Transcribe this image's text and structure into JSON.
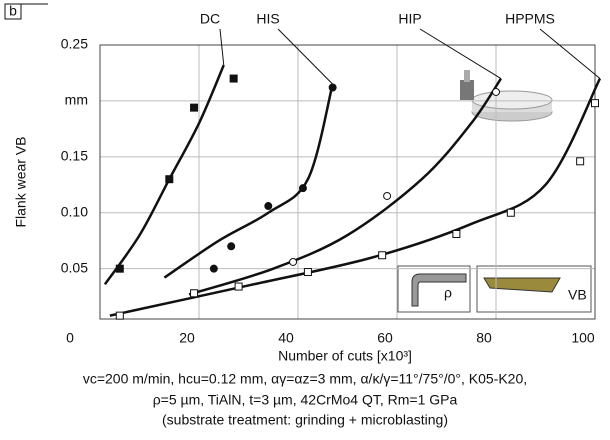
{
  "panel_label": "b",
  "chart_data": {
    "type": "scatter",
    "y_label": "Flank wear VB",
    "x_label": "Number of cuts [x10³]",
    "xlim": [
      0,
      100
    ],
    "xticks": [
      0,
      20,
      40,
      60,
      80,
      100
    ],
    "ylim": [
      0.005,
      0.25
    ],
    "yticks": [
      0.05,
      {
        "value": 0.1,
        "label": "0.10"
      },
      0.15,
      {
        "value": 0.2,
        "label": "mm"
      },
      0.25
    ],
    "grid": true,
    "series": [
      {
        "name": "DC",
        "color": "#111111",
        "marker": "square",
        "filled": true,
        "x": [
          4,
          14,
          19,
          27
        ],
        "values": [
          0.05,
          0.13,
          0.194,
          0.22
        ],
        "fit_x": [
          1,
          8,
          14,
          20,
          25
        ],
        "fit_values": [
          0.036,
          0.08,
          0.13,
          0.18,
          0.232
        ]
      },
      {
        "name": "HIS",
        "color": "#111111",
        "marker": "circle",
        "filled": true,
        "x": [
          23,
          26.5,
          34,
          41,
          47
        ],
        "values": [
          0.05,
          0.07,
          0.106,
          0.122,
          0.212
        ],
        "fit_x": [
          13,
          24,
          34,
          42,
          47
        ],
        "fit_values": [
          0.042,
          0.075,
          0.1,
          0.13,
          0.215
        ]
      },
      {
        "name": "HIP",
        "color": "#111111",
        "marker": "circle",
        "filled": false,
        "x": [
          39,
          58,
          80
        ],
        "values": [
          0.056,
          0.115,
          0.208
        ],
        "fit_x": [
          18,
          35,
          50,
          65,
          75,
          81
        ],
        "fit_values": [
          0.027,
          0.05,
          0.08,
          0.13,
          0.18,
          0.22
        ]
      },
      {
        "name": "HPPMS",
        "color": "#111111",
        "marker": "square",
        "filled": false,
        "x": [
          4,
          19,
          28,
          42,
          57,
          72,
          83,
          97,
          100
        ],
        "values": [
          0.008,
          0.028,
          0.034,
          0.047,
          0.062,
          0.081,
          0.1,
          0.146,
          0.198
        ],
        "fit_x": [
          2,
          30,
          55,
          75,
          90,
          101
        ],
        "fit_values": [
          0.008,
          0.035,
          0.06,
          0.09,
          0.125,
          0.22
        ]
      }
    ]
  },
  "insets": {
    "rho_label": "ρ",
    "vb_label": "VB"
  },
  "caption": [
    "vc=200 m/min, hcu=0.12 mm, αγ=αz=3 mm, α/κ/γ=11°/75°/0°, K05-K20,",
    "ρ=5 µm,  TiAlN, t=3 µm, 42CrMo4 QT,  Rm=1 GPa",
    "(substrate treatment: grinding + microblasting)"
  ]
}
